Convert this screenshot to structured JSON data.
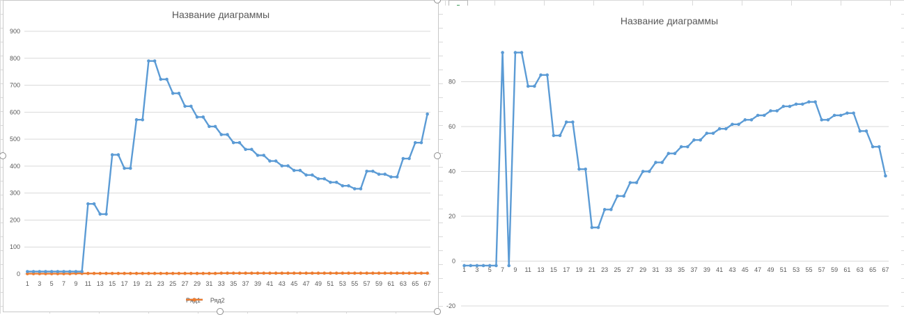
{
  "chart_data": [
    {
      "type": "line",
      "title": "Название диаграммы",
      "xlabel": "",
      "ylabel": "",
      "categories": [
        1,
        2,
        3,
        4,
        5,
        6,
        7,
        8,
        9,
        10,
        11,
        12,
        13,
        14,
        15,
        16,
        17,
        18,
        19,
        20,
        21,
        22,
        23,
        24,
        25,
        26,
        27,
        28,
        29,
        30,
        31,
        32,
        33,
        34,
        35,
        36,
        37,
        38,
        39,
        40,
        41,
        42,
        43,
        44,
        45,
        46,
        47,
        48,
        49,
        50,
        51,
        52,
        53,
        54,
        55,
        56,
        57,
        58,
        59,
        60,
        61,
        62,
        63,
        64,
        65,
        66,
        67
      ],
      "x_tick_labels": [
        "1",
        "3",
        "5",
        "7",
        "9",
        "11",
        "13",
        "15",
        "17",
        "19",
        "21",
        "23",
        "25",
        "27",
        "29",
        "31",
        "33",
        "35",
        "37",
        "39",
        "41",
        "43",
        "45",
        "47",
        "49",
        "51",
        "53",
        "55",
        "57",
        "59",
        "61",
        "63",
        "65",
        "67"
      ],
      "y_tick_labels": [
        "0",
        "100",
        "200",
        "300",
        "400",
        "500",
        "600",
        "700",
        "800",
        "900"
      ],
      "ylim": [
        0,
        900
      ],
      "grid": true,
      "legend": "bottom",
      "series": [
        {
          "name": "Ряд1",
          "color": "#5b9bd5",
          "values": [
            9,
            9,
            9,
            9,
            9,
            9,
            9,
            9,
            9,
            9,
            260,
            260,
            222,
            222,
            442,
            442,
            392,
            392,
            572,
            572,
            790,
            790,
            722,
            722,
            670,
            670,
            622,
            622,
            582,
            582,
            547,
            547,
            517,
            517,
            487,
            487,
            462,
            462,
            440,
            440,
            419,
            419,
            401,
            401,
            384,
            384,
            367,
            367,
            353,
            353,
            340,
            340,
            327,
            327,
            316,
            316,
            381,
            381,
            370,
            370,
            360,
            360,
            428,
            428,
            487,
            487,
            593
          ]
        },
        {
          "name": "Ряд2",
          "color": "#ed7d31",
          "values": [
            1,
            1,
            1,
            1,
            1,
            1,
            1,
            1,
            2,
            2,
            2,
            2,
            2,
            2,
            2,
            2,
            2,
            2,
            2,
            2,
            2,
            2,
            2,
            2,
            2,
            2,
            2,
            2,
            2,
            2,
            2,
            2,
            3,
            3,
            3,
            3,
            3,
            3,
            3,
            3,
            3,
            3,
            3,
            3,
            3,
            3,
            3,
            3,
            3,
            3,
            3,
            3,
            3,
            3,
            3,
            3,
            3,
            3,
            3,
            3,
            3,
            3,
            3,
            3,
            3,
            3,
            3
          ]
        }
      ]
    },
    {
      "type": "line",
      "title": "Название диаграммы",
      "xlabel": "",
      "ylabel": "",
      "categories": [
        1,
        2,
        3,
        4,
        5,
        6,
        7,
        8,
        9,
        10,
        11,
        12,
        13,
        14,
        15,
        16,
        17,
        18,
        19,
        20,
        21,
        22,
        23,
        24,
        25,
        26,
        27,
        28,
        29,
        30,
        31,
        32,
        33,
        34,
        35,
        36,
        37,
        38,
        39,
        40,
        41,
        42,
        43,
        44,
        45,
        46,
        47,
        48,
        49,
        50,
        51,
        52,
        53,
        54,
        55,
        56,
        57,
        58,
        59,
        60,
        61,
        62,
        63,
        64,
        65,
        66,
        67
      ],
      "x_tick_labels": [
        "1",
        "3",
        "5",
        "7",
        "9",
        "11",
        "13",
        "15",
        "17",
        "19",
        "21",
        "23",
        "25",
        "27",
        "29",
        "31",
        "33",
        "35",
        "37",
        "39",
        "41",
        "43",
        "45",
        "47",
        "49",
        "51",
        "53",
        "55",
        "57",
        "59",
        "61",
        "63",
        "65",
        "67"
      ],
      "y_tick_labels": [
        "-20",
        "0",
        "20",
        "40",
        "60",
        "80"
      ],
      "ylim": [
        -20,
        100
      ],
      "grid": true,
      "legend": "none",
      "series": [
        {
          "color": "#5b9bd5",
          "values": [
            -2,
            -2,
            -2,
            -2,
            -2,
            -2,
            93,
            -2,
            93,
            93,
            78,
            78,
            83,
            83,
            56,
            56,
            62,
            62,
            41,
            41,
            15,
            15,
            23,
            23,
            29,
            29,
            35,
            35,
            40,
            40,
            44,
            44,
            48,
            48,
            51,
            51,
            54,
            54,
            57,
            57,
            59,
            59,
            61,
            61,
            63,
            63,
            65,
            65,
            67,
            67,
            69,
            69,
            70,
            70,
            71,
            71,
            63,
            63,
            65,
            65,
            66,
            66,
            58,
            58,
            51,
            51,
            38
          ]
        }
      ]
    }
  ],
  "toolbar": {
    "add_icon": "plus-icon",
    "style_icon": "brush-icon",
    "filter_icon": "funnel-icon"
  }
}
